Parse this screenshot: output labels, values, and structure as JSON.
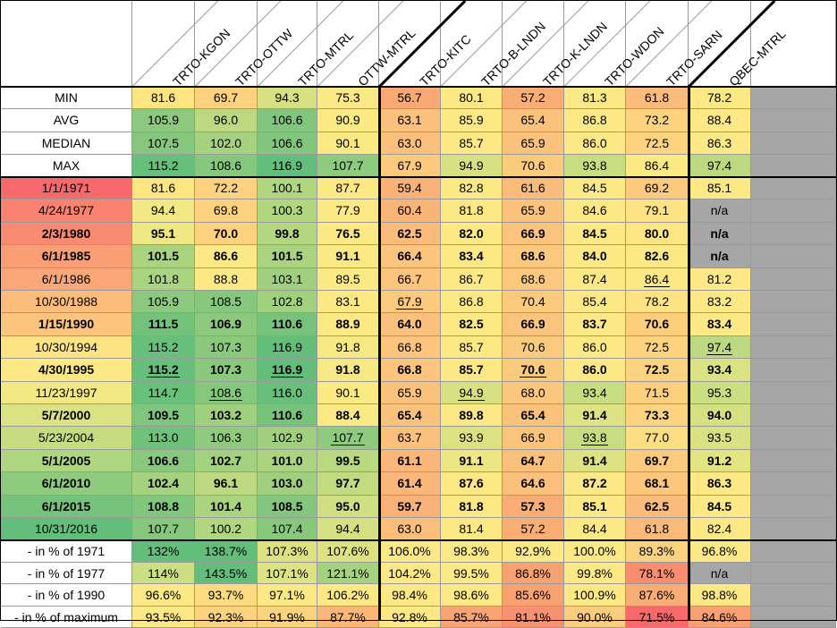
{
  "columns": [
    "TRTO-KGON",
    "TRTO-OTTW",
    "TRTO-MTRL",
    "OTTW-MTRL",
    "TRTO-KITC",
    "TRTO-B-LNDN",
    "TRTO-K-LNDN",
    "TRTO-WDON",
    "TRTO-SARN",
    "QBEC-MTRL"
  ],
  "stats": [
    {
      "label": "MIN",
      "values": [
        "81.6",
        "69.7",
        "94.3",
        "75.3",
        "56.7",
        "80.1",
        "57.2",
        "81.3",
        "61.8",
        "78.2"
      ],
      "colors": [
        "#fde57f",
        "#fdd17e",
        "#d6e081",
        "#fde886",
        "#f9a974",
        "#fde886",
        "#faae75",
        "#fde886",
        "#fbbc7b",
        "#fde886"
      ]
    },
    {
      "label": "AVG",
      "values": [
        "105.9",
        "96.0",
        "106.6",
        "90.9",
        "63.1",
        "85.9",
        "65.4",
        "86.8",
        "73.2",
        "88.4"
      ],
      "colors": [
        "#8cc97e",
        "#bcd981",
        "#82c67d",
        "#fbea84",
        "#fbc07c",
        "#fde886",
        "#fbc27c",
        "#fde886",
        "#fdd37f",
        "#fde886"
      ]
    },
    {
      "label": "MEDIAN",
      "values": [
        "107.5",
        "102.0",
        "106.6",
        "90.1",
        "63.0",
        "85.7",
        "65.9",
        "86.0",
        "72.5",
        "86.3"
      ],
      "colors": [
        "#86c77d",
        "#a6d27f",
        "#82c67d",
        "#fbea84",
        "#fbc07c",
        "#fde886",
        "#fbc27c",
        "#fde886",
        "#fdd37f",
        "#fde886"
      ]
    },
    {
      "label": "MAX",
      "values": [
        "115.2",
        "108.6",
        "116.9",
        "107.7",
        "67.9",
        "94.9",
        "70.6",
        "93.8",
        "86.4",
        "97.4"
      ],
      "colors": [
        "#66bf7b",
        "#85c77d",
        "#63be7b",
        "#8fcb7e",
        "#fcc97d",
        "#d8e082",
        "#fbcb7d",
        "#c8dd81",
        "#fde886",
        "#bcd981"
      ]
    }
  ],
  "data_rows": [
    {
      "label": "1/1/1971",
      "bold": false,
      "label_color": "#f8696b",
      "values": [
        "81.6",
        "72.2",
        "100.1",
        "87.7",
        "59.4",
        "82.8",
        "61.6",
        "84.5",
        "69.2",
        "85.1"
      ],
      "colors": [
        "#fde57f",
        "#fdd17e",
        "#b0d680",
        "#fde886",
        "#fab278",
        "#fde886",
        "#fbbb7a",
        "#fde886",
        "#fcc97d",
        "#fde886"
      ],
      "underline": []
    },
    {
      "label": "4/24/1977",
      "bold": false,
      "label_color": "#f98370",
      "values": [
        "94.4",
        "69.8",
        "100.3",
        "77.9",
        "60.4",
        "81.8",
        "65.9",
        "84.6",
        "79.1",
        "n/a"
      ],
      "colors": [
        "#f2e884",
        "#fdd17e",
        "#b0d680",
        "#fde886",
        "#fab478",
        "#fde886",
        "#fbc27c",
        "#fde886",
        "#fde383",
        "#a6a6a6"
      ],
      "underline": []
    },
    {
      "label": "2/3/1980",
      "bold": true,
      "label_color": "#f98b72",
      "values": [
        "95.1",
        "70.0",
        "99.8",
        "76.5",
        "62.5",
        "82.0",
        "66.9",
        "84.5",
        "80.0",
        "n/a"
      ],
      "colors": [
        "#eee783",
        "#fdd17e",
        "#b3d780",
        "#fde886",
        "#fbbc7b",
        "#fde886",
        "#fbc47c",
        "#fde886",
        "#fde584",
        "#a6a6a6"
      ],
      "underline": []
    },
    {
      "label": "6/1/1985",
      "bold": true,
      "label_color": "#fa9f75",
      "values": [
        "101.5",
        "86.6",
        "101.5",
        "91.1",
        "66.4",
        "83.4",
        "68.6",
        "84.0",
        "82.6",
        "n/a"
      ],
      "colors": [
        "#a9d37f",
        "#fde886",
        "#a9d37f",
        "#fbea84",
        "#fcc47c",
        "#fde886",
        "#fbc87d",
        "#fde886",
        "#fde886",
        "#a6a6a6"
      ],
      "underline": []
    },
    {
      "label": "6/1/1986",
      "bold": false,
      "label_color": "#fba777",
      "values": [
        "101.8",
        "88.8",
        "103.1",
        "89.5",
        "66.7",
        "86.7",
        "68.6",
        "87.4",
        "86.4",
        "81.2"
      ],
      "colors": [
        "#a8d37f",
        "#fde886",
        "#a0d07e",
        "#fbea84",
        "#fcc47c",
        "#fde886",
        "#fbc87d",
        "#fde886",
        "#fde886",
        "#fde886"
      ],
      "underline": [
        8
      ]
    },
    {
      "label": "10/30/1988",
      "bold": false,
      "label_color": "#fcbc7b",
      "values": [
        "105.9",
        "108.5",
        "102.8",
        "83.1",
        "67.9",
        "86.8",
        "70.4",
        "85.4",
        "78.2",
        "83.2"
      ],
      "colors": [
        "#8cc97e",
        "#85c77d",
        "#a1d17f",
        "#fde886",
        "#fcc97d",
        "#fde886",
        "#fbcb7d",
        "#fde886",
        "#fde383",
        "#fde886"
      ],
      "underline": [
        4
      ]
    },
    {
      "label": "1/15/1990",
      "bold": true,
      "label_color": "#fcc47c",
      "values": [
        "111.5",
        "106.9",
        "110.6",
        "88.9",
        "64.0",
        "82.5",
        "66.9",
        "83.7",
        "70.6",
        "83.4"
      ],
      "colors": [
        "#73c27c",
        "#8cc97e",
        "#77c37c",
        "#fbea84",
        "#fbc07c",
        "#fde886",
        "#fbc47c",
        "#fde886",
        "#fdcd7e",
        "#fde886"
      ],
      "underline": []
    },
    {
      "label": "10/30/1994",
      "bold": false,
      "label_color": "#fde383",
      "values": [
        "115.2",
        "107.3",
        "116.9",
        "91.8",
        "66.8",
        "85.7",
        "70.6",
        "86.0",
        "72.5",
        "97.4"
      ],
      "colors": [
        "#66bf7b",
        "#8ac87d",
        "#63be7b",
        "#f6e984",
        "#fcc47c",
        "#fde886",
        "#fbcb7d",
        "#fde886",
        "#fdd37f",
        "#bcd981"
      ],
      "underline": [
        9
      ]
    },
    {
      "label": "4/30/1995",
      "bold": true,
      "label_color": "#fde886",
      "values": [
        "115.2",
        "107.3",
        "116.9",
        "91.8",
        "66.8",
        "85.7",
        "70.6",
        "86.0",
        "72.5",
        "93.4"
      ],
      "colors": [
        "#66bf7b",
        "#8ac87d",
        "#63be7b",
        "#f6e984",
        "#fcc47c",
        "#fde886",
        "#fbcb7d",
        "#fde886",
        "#fdd37f",
        "#dae283"
      ],
      "underline": [
        0,
        2,
        6
      ]
    },
    {
      "label": "11/23/1997",
      "bold": false,
      "label_color": "#f2e884",
      "values": [
        "114.7",
        "108.6",
        "116.0",
        "90.1",
        "65.9",
        "94.9",
        "68.0",
        "93.4",
        "71.5",
        "95.3"
      ],
      "colors": [
        "#68c07b",
        "#85c77d",
        "#67bf7b",
        "#fbea84",
        "#fbc27c",
        "#d8e082",
        "#fbc77d",
        "#c8dd81",
        "#fdcf7e",
        "#ccde82"
      ],
      "underline": [
        1,
        5
      ]
    },
    {
      "label": "5/7/2000",
      "bold": true,
      "label_color": "#dae283",
      "values": [
        "109.5",
        "103.2",
        "110.6",
        "88.4",
        "65.4",
        "89.8",
        "65.4",
        "91.4",
        "73.3",
        "94.0"
      ],
      "colors": [
        "#7ec57d",
        "#9fd07e",
        "#77c37c",
        "#fbea84",
        "#fbc27c",
        "#fde886",
        "#fbc27c",
        "#dde282",
        "#fdd37f",
        "#d4e082"
      ],
      "underline": []
    },
    {
      "label": "5/23/2004",
      "bold": false,
      "label_color": "#c6dc81",
      "values": [
        "113.0",
        "106.3",
        "102.9",
        "107.7",
        "63.7",
        "93.9",
        "66.9",
        "93.8",
        "77.0",
        "93.5"
      ],
      "colors": [
        "#6fc17c",
        "#8fca7e",
        "#a0d07e",
        "#8fcb7e",
        "#fbc07c",
        "#dce182",
        "#fbc47c",
        "#c8dd81",
        "#fdde82",
        "#d9e183"
      ],
      "underline": [
        3,
        7
      ]
    },
    {
      "label": "5/1/2005",
      "bold": true,
      "label_color": "#aed580",
      "values": [
        "106.6",
        "102.7",
        "101.0",
        "99.5",
        "61.1",
        "91.1",
        "64.7",
        "91.4",
        "69.7",
        "91.2"
      ],
      "colors": [
        "#89c87e",
        "#a2d17f",
        "#acd480",
        "#b9d981",
        "#fab779",
        "#ede682",
        "#fbc17c",
        "#dde282",
        "#fdcb7d",
        "#e4e483"
      ],
      "underline": []
    },
    {
      "label": "6/1/2010",
      "bold": true,
      "label_color": "#8ecb7e",
      "values": [
        "102.4",
        "96.1",
        "103.0",
        "97.7",
        "61.4",
        "87.6",
        "64.6",
        "87.2",
        "68.1",
        "86.3"
      ],
      "colors": [
        "#a4d27f",
        "#bcd981",
        "#a0d07e",
        "#c2db81",
        "#fab779",
        "#fde886",
        "#fbc17c",
        "#fde886",
        "#fcc77d",
        "#fde886"
      ],
      "underline": []
    },
    {
      "label": "6/1/2015",
      "bold": true,
      "label_color": "#75c37c",
      "values": [
        "108.8",
        "101.4",
        "108.5",
        "95.0",
        "59.7",
        "81.8",
        "57.3",
        "85.1",
        "62.5",
        "84.5"
      ],
      "colors": [
        "#81c67d",
        "#aad480",
        "#83c67d",
        "#d0df82",
        "#fab278",
        "#fde886",
        "#faae75",
        "#fde886",
        "#fbbc7b",
        "#fde886"
      ],
      "underline": []
    },
    {
      "label": "10/31/2016",
      "bold": false,
      "label_color": "#63be7b",
      "values": [
        "107.7",
        "100.2",
        "107.4",
        "94.4",
        "63.0",
        "81.4",
        "57.2",
        "84.4",
        "61.8",
        "82.4"
      ],
      "colors": [
        "#86c77d",
        "#b0d680",
        "#87c87d",
        "#d4e082",
        "#fbbe7b",
        "#fde886",
        "#faae75",
        "#fde886",
        "#fbba7a",
        "#fde886"
      ],
      "underline": []
    }
  ],
  "pct_rows": [
    {
      "label": "- in % of 1971",
      "values": [
        "132%",
        "138.7%",
        "107.3%",
        "107.6%",
        "106.0%",
        "98.3%",
        "92.9%",
        "100.0%",
        "89.3%",
        "96.8%"
      ],
      "colors": [
        "#63be7b",
        "#63be7b",
        "#dce182",
        "#dce182",
        "#fde886",
        "#fde886",
        "#fde886",
        "#fde886",
        "#fbd27f",
        "#fde886"
      ]
    },
    {
      "label": "- in % of 1977",
      "values": [
        "114%",
        "143.5%",
        "107.1%",
        "121.1%",
        "104.2%",
        "99.5%",
        "86.8%",
        "99.8%",
        "78.1%",
        "n/a"
      ],
      "colors": [
        "#cbde82",
        "#63be7b",
        "#dde282",
        "#a5d27f",
        "#fde886",
        "#fde886",
        "#f8a272",
        "#fde886",
        "#f88e6f",
        "#a6a6a6"
      ]
    },
    {
      "label": "- in % of 1990",
      "values": [
        "96.6%",
        "93.7%",
        "97.1%",
        "106.2%",
        "98.4%",
        "98.6%",
        "85.6%",
        "100.9%",
        "87.6%",
        "98.8%"
      ],
      "colors": [
        "#fde886",
        "#fddb81",
        "#fde886",
        "#fde886",
        "#fde886",
        "#fde886",
        "#f8a272",
        "#fde886",
        "#f9ad76",
        "#fde886"
      ]
    },
    {
      "label": "- in % of maximum",
      "values": [
        "93.5%",
        "92.3%",
        "91.9%",
        "87.7%",
        "92.8%",
        "85.7%",
        "81.1%",
        "90.0%",
        "71.5%",
        "84.6%"
      ],
      "colors": [
        "#fde886",
        "#fdd37f",
        "#fdd37f",
        "#fab778",
        "#fde886",
        "#f9a474",
        "#f7916f",
        "#fccd7e",
        "#f8696b",
        "#f9a173"
      ]
    }
  ]
}
